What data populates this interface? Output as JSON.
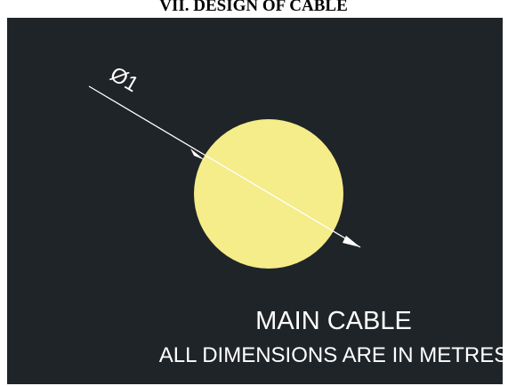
{
  "heading": "VII. DESIGN OF CABLE",
  "diagram": {
    "dimension_label": "Ø1",
    "title": "MAIN CABLE",
    "note": "ALL DIMENSIONS ARE IN METRES"
  }
}
